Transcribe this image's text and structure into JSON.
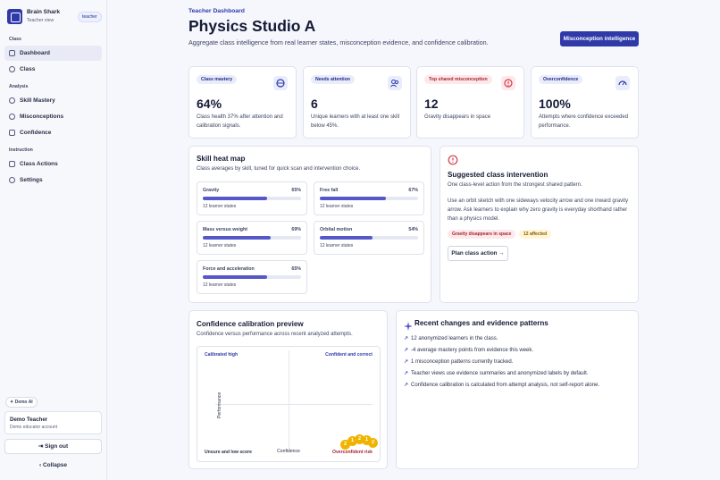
{
  "brand": {
    "name": "Brain Shark",
    "view": "Teacher view",
    "badge": "teacher"
  },
  "sidebar": {
    "sections": [
      "Class",
      "Analysis",
      "Instruction"
    ],
    "items": [
      {
        "label": "Dashboard",
        "icon": "home-icon"
      },
      {
        "label": "Class",
        "icon": "users-icon"
      },
      {
        "label": "Skill Mastery",
        "icon": "target-icon"
      },
      {
        "label": "Misconceptions",
        "icon": "alert-circle-icon"
      },
      {
        "label": "Confidence",
        "icon": "gauge-icon"
      },
      {
        "label": "Class Actions",
        "icon": "list-icon"
      },
      {
        "label": "Settings",
        "icon": "gear-icon"
      }
    ],
    "ai_badge": "Demo AI",
    "account": {
      "name": "Demo Teacher",
      "role": "Demo educator account"
    },
    "signout": "Sign out",
    "collapse": "Collapse"
  },
  "header": {
    "eyebrow": "Teacher Dashboard",
    "title": "Physics Studio A",
    "subtitle": "Aggregate class intelligence from real learner states, misconception evidence, and confidence calibration.",
    "cta": "Misconception intelligence"
  },
  "metrics": [
    {
      "tag": "Class mastery",
      "value": "64%",
      "desc": "Class health 37% after attention and calibration signals.",
      "tone": "blue"
    },
    {
      "tag": "Needs attention",
      "value": "6",
      "desc": "Unique learners with at least one skill below 45%.",
      "tone": "blue"
    },
    {
      "tag": "Top shared misconception",
      "value": "12",
      "desc": "Gravity disappears in space",
      "tone": "red"
    },
    {
      "tag": "Overconfidence",
      "value": "100%",
      "desc": "Attempts where confidence exceeded performance.",
      "tone": "blue"
    }
  ],
  "heatmap": {
    "title": "Skill heat map",
    "subtitle": "Class averages by skill, tuned for quick scan and intervention choice.",
    "skills": [
      {
        "name": "Gravity",
        "pct": "65%",
        "level": 0.65,
        "foot": "12 learner states"
      },
      {
        "name": "Free fall",
        "pct": "67%",
        "level": 0.67,
        "foot": "12 learner states"
      },
      {
        "name": "Mass versus weight",
        "pct": "69%",
        "level": 0.69,
        "foot": "12 learner states"
      },
      {
        "name": "Orbital motion",
        "pct": "54%",
        "level": 0.54,
        "foot": "12 learner states"
      },
      {
        "name": "Force and acceleration",
        "pct": "65%",
        "level": 0.65,
        "foot": "12 learner states"
      }
    ]
  },
  "suggested": {
    "title": "Suggested class intervention",
    "subtitle": "One class-level action from the strongest shared pattern.",
    "body": "Use an orbit sketch with one sideways velocity arrow and one inward gravity arrow. Ask learners to explain why zero gravity is everyday shorthand rather than a physics model.",
    "tag": "Gravity disappears in space",
    "count": "12 affected",
    "action": "Plan class action"
  },
  "calibration": {
    "title": "Confidence calibration preview",
    "subtitle": "Confidence versus performance across recent analyzed attempts.",
    "q_tl": "Calibrated high",
    "q_tr": "Confident and correct",
    "q_bl": "Unsure and low score",
    "q_br": "Overconfident risk",
    "xlabel": "Confidence",
    "ylabel": "Performance",
    "points": [
      "2",
      "1",
      "2",
      "1",
      "2"
    ]
  },
  "recent": {
    "title": "Recent changes and evidence patterns",
    "items": [
      "12 anonymized learners in the class.",
      "-4 average mastery points from evidence this week.",
      "1 misconception patterns currently tracked.",
      "Teacher views use evidence summaries and anonymized labels by default.",
      "Confidence calibration is calculated from attempt analysis, not self-report alone."
    ]
  },
  "colors": {
    "accent": "#2f3aa8",
    "danger": "#d63a4a",
    "bar": "#5657c9",
    "warn": "#f0b400"
  }
}
